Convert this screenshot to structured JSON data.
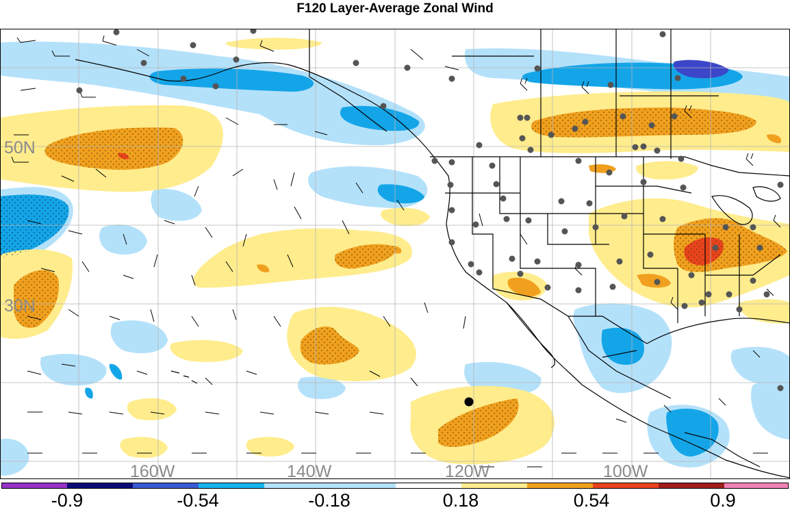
{
  "title": "F120 Layer-Average Zonal Wind",
  "map": {
    "latitude_labels": [
      "50N",
      "30N"
    ],
    "longitude_labels": [
      "160W",
      "140W",
      "120W",
      "100W"
    ],
    "land_color": "#ffffff",
    "coastline_color": "#000000",
    "grid_color": "#b4b4b4",
    "station_color": "#555555",
    "marker_color": "#000000",
    "shading": {
      "positive_light": "#ffec8c",
      "positive_mid": "#f0a01e",
      "positive_strong": "#e8431c",
      "negative_light": "#b4e1fa",
      "negative_mid": "#14a5e8",
      "negative_strong": "#3c46c8"
    }
  },
  "colorbar": {
    "tick_labels": [
      "-0.9",
      "-0.54",
      "-0.18",
      "0.18",
      "0.54",
      "0.9"
    ],
    "segment_colors": [
      "#9632c8",
      "#0a0a78",
      "#3c5ad2",
      "#14b4f0",
      "#b4e1fa",
      "#ffffff",
      "#ffec8c",
      "#f0a01e",
      "#e8431c",
      "#a01e1e",
      "#f082b4"
    ]
  }
}
